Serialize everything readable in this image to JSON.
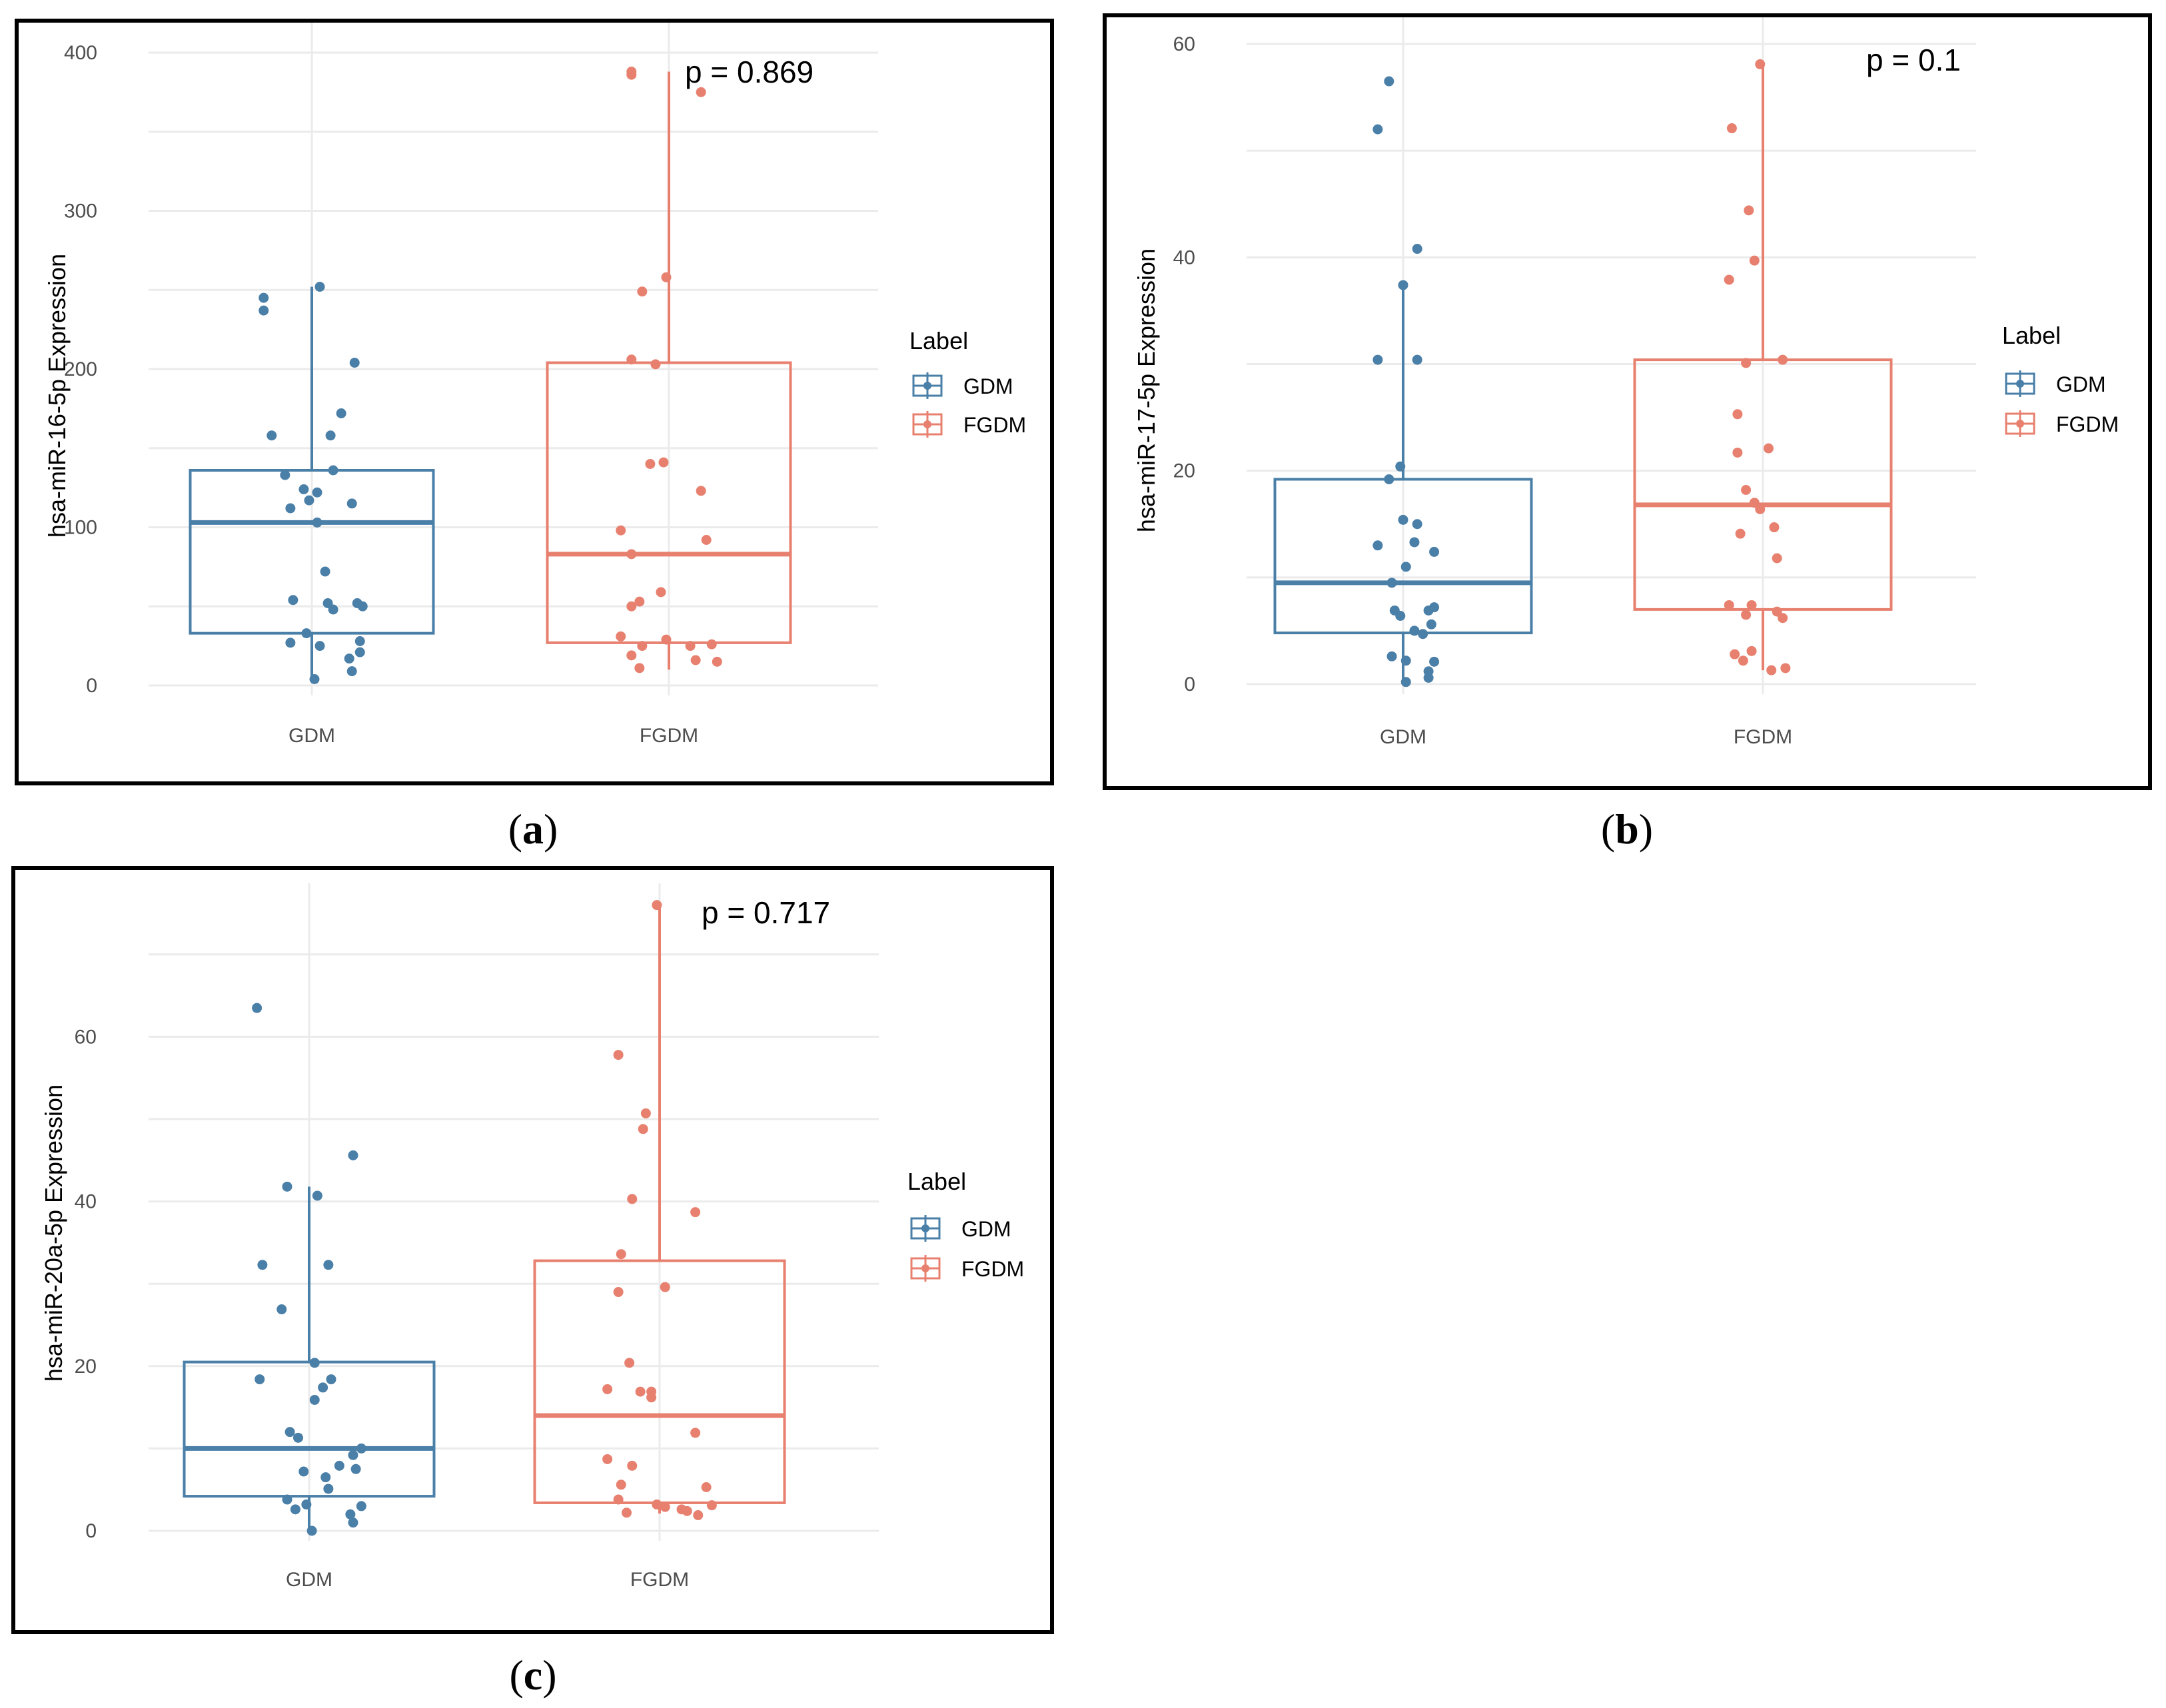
{
  "legend": {
    "title": "Label",
    "items": [
      {
        "name": "GDM",
        "color": "#4A7FA8"
      },
      {
        "name": "FGDM",
        "color": "#E8806F"
      }
    ]
  },
  "chart_data": [
    {
      "id": "a",
      "type": "box",
      "panel_label": "a",
      "ylabel": "hsa-miR-16-5p Expression",
      "xlabel": "",
      "categories": [
        "GDM",
        "FGDM"
      ],
      "ylim": [
        0,
        400
      ],
      "yticks": [
        0,
        100,
        200,
        300,
        400
      ],
      "pvalue_text": "p = 0.869",
      "boxes": [
        {
          "name": "GDM",
          "q1": 33,
          "median": 103,
          "q3": 136,
          "whisker_low": 3,
          "whisker_high": 252
        },
        {
          "name": "FGDM",
          "q1": 27,
          "median": 83,
          "q3": 204,
          "whisker_low": 10,
          "whisker_high": 388
        }
      ],
      "points": [
        [
          [
            -0.18,
            245
          ],
          [
            -0.18,
            237
          ],
          [
            0.03,
            252
          ],
          [
            0.16,
            204
          ],
          [
            -0.15,
            158
          ],
          [
            0.07,
            158
          ],
          [
            0.11,
            172
          ],
          [
            -0.1,
            133
          ],
          [
            0.08,
            136
          ],
          [
            -0.03,
            124
          ],
          [
            0.02,
            122
          ],
          [
            -0.01,
            117
          ],
          [
            -0.08,
            112
          ],
          [
            0.15,
            115
          ],
          [
            0.02,
            103
          ],
          [
            0.05,
            72
          ],
          [
            -0.07,
            54
          ],
          [
            0.06,
            52
          ],
          [
            0.08,
            48
          ],
          [
            0.17,
            52
          ],
          [
            0.19,
            50
          ],
          [
            -0.02,
            33
          ],
          [
            -0.08,
            27
          ],
          [
            0.03,
            25
          ],
          [
            0.18,
            28
          ],
          [
            0.18,
            21
          ],
          [
            0.14,
            17
          ],
          [
            0.15,
            9
          ],
          [
            0.01,
            4
          ]
        ],
        [
          [
            -0.14,
            388
          ],
          [
            -0.14,
            386
          ],
          [
            0.12,
            375
          ],
          [
            -0.1,
            249
          ],
          [
            -0.01,
            258
          ],
          [
            -0.14,
            206
          ],
          [
            -0.05,
            203
          ],
          [
            -0.07,
            140
          ],
          [
            -0.02,
            141
          ],
          [
            0.12,
            123
          ],
          [
            0.14,
            92
          ],
          [
            -0.18,
            98
          ],
          [
            -0.14,
            83
          ],
          [
            -0.03,
            59
          ],
          [
            -0.11,
            53
          ],
          [
            -0.14,
            50
          ],
          [
            -0.18,
            31
          ],
          [
            -0.1,
            25
          ],
          [
            -0.01,
            29
          ],
          [
            0.08,
            25
          ],
          [
            0.16,
            26
          ],
          [
            -0.14,
            19
          ],
          [
            0.1,
            16
          ],
          [
            0.18,
            15
          ],
          [
            -0.11,
            11
          ]
        ]
      ]
    },
    {
      "id": "b",
      "type": "box",
      "panel_label": "b",
      "ylabel": "hsa-miR-17-5p Expression",
      "xlabel": "",
      "categories": [
        "GDM",
        "FGDM"
      ],
      "ylim": [
        0,
        60
      ],
      "yticks": [
        0,
        20,
        40,
        60
      ],
      "pvalue_text": "p = 0.1",
      "boxes": [
        {
          "name": "GDM",
          "q1": 4.8,
          "median": 9.5,
          "q3": 19.2,
          "whisker_low": 0.2,
          "whisker_high": 37.4
        },
        {
          "name": "FGDM",
          "q1": 7.0,
          "median": 16.8,
          "q3": 30.4,
          "whisker_low": 1.3,
          "whisker_high": 58.1
        }
      ],
      "points": [
        [
          [
            -0.09,
            52.0
          ],
          [
            -0.05,
            56.5
          ],
          [
            0.05,
            40.8
          ],
          [
            0.0,
            37.4
          ],
          [
            -0.09,
            30.4
          ],
          [
            0.05,
            30.4
          ],
          [
            -0.01,
            20.4
          ],
          [
            -0.05,
            19.2
          ],
          [
            0.0,
            15.4
          ],
          [
            0.05,
            15.0
          ],
          [
            0.04,
            13.3
          ],
          [
            -0.09,
            13.0
          ],
          [
            0.11,
            12.4
          ],
          [
            0.01,
            11.0
          ],
          [
            -0.04,
            9.5
          ],
          [
            -0.03,
            6.9
          ],
          [
            -0.01,
            6.4
          ],
          [
            0.09,
            6.9
          ],
          [
            0.11,
            7.2
          ],
          [
            0.04,
            5.0
          ],
          [
            0.07,
            4.7
          ],
          [
            0.1,
            5.6
          ],
          [
            0.01,
            2.2
          ],
          [
            -0.04,
            2.6
          ],
          [
            0.11,
            2.1
          ],
          [
            0.09,
            1.2
          ],
          [
            0.09,
            0.6
          ],
          [
            0.01,
            0.2
          ]
        ],
        [
          [
            -0.01,
            58.1
          ],
          [
            -0.11,
            52.1
          ],
          [
            -0.05,
            44.4
          ],
          [
            -0.03,
            39.7
          ],
          [
            -0.12,
            37.9
          ],
          [
            -0.06,
            30.1
          ],
          [
            0.07,
            30.4
          ],
          [
            -0.09,
            25.3
          ],
          [
            0.02,
            22.1
          ],
          [
            -0.09,
            21.7
          ],
          [
            -0.06,
            18.2
          ],
          [
            -0.03,
            17.0
          ],
          [
            -0.01,
            16.4
          ],
          [
            0.04,
            14.7
          ],
          [
            -0.08,
            14.1
          ],
          [
            0.05,
            11.8
          ],
          [
            -0.12,
            7.4
          ],
          [
            -0.04,
            7.4
          ],
          [
            -0.06,
            6.5
          ],
          [
            0.05,
            6.8
          ],
          [
            0.07,
            6.2
          ],
          [
            -0.1,
            2.8
          ],
          [
            -0.07,
            2.2
          ],
          [
            -0.04,
            3.1
          ],
          [
            0.03,
            1.3
          ],
          [
            0.08,
            1.5
          ]
        ]
      ]
    },
    {
      "id": "c",
      "type": "box",
      "panel_label": "c",
      "ylabel": "hsa-miR-20a-5p Expression",
      "xlabel": "",
      "categories": [
        "GDM",
        "FGDM"
      ],
      "ylim": [
        0,
        75
      ],
      "yticks": [
        0,
        20,
        40,
        60
      ],
      "pvalue_text": "p = 0.717",
      "boxes": [
        {
          "name": "GDM",
          "q1": 4.2,
          "median": 10.0,
          "q3": 20.5,
          "whisker_low": 0.0,
          "whisker_high": 41.8
        },
        {
          "name": "FGDM",
          "q1": 3.4,
          "median": 14.0,
          "q3": 32.8,
          "whisker_low": 2.1,
          "whisker_high": 76.0
        }
      ],
      "points": [
        [
          [
            -0.19,
            63.5
          ],
          [
            -0.08,
            41.8
          ],
          [
            0.03,
            40.7
          ],
          [
            0.16,
            45.6
          ],
          [
            -0.17,
            32.3
          ],
          [
            0.07,
            32.3
          ],
          [
            -0.1,
            26.9
          ],
          [
            0.02,
            20.4
          ],
          [
            -0.18,
            18.4
          ],
          [
            0.08,
            18.4
          ],
          [
            0.05,
            17.4
          ],
          [
            0.02,
            15.9
          ],
          [
            -0.07,
            12.0
          ],
          [
            -0.04,
            11.3
          ],
          [
            0.19,
            10.0
          ],
          [
            0.16,
            9.2
          ],
          [
            -0.02,
            7.2
          ],
          [
            0.06,
            6.5
          ],
          [
            0.11,
            7.9
          ],
          [
            0.17,
            7.5
          ],
          [
            0.07,
            5.1
          ],
          [
            -0.08,
            3.8
          ],
          [
            -0.01,
            3.2
          ],
          [
            0.19,
            3.0
          ],
          [
            -0.05,
            2.6
          ],
          [
            0.15,
            2.0
          ],
          [
            0.16,
            1.0
          ],
          [
            0.01,
            0.0
          ]
        ],
        [
          [
            -0.01,
            76.0
          ],
          [
            -0.15,
            57.8
          ],
          [
            -0.06,
            48.8
          ],
          [
            -0.05,
            50.7
          ],
          [
            -0.1,
            40.3
          ],
          [
            0.13,
            38.7
          ],
          [
            -0.14,
            33.6
          ],
          [
            -0.15,
            29.0
          ],
          [
            0.02,
            29.6
          ],
          [
            -0.11,
            20.4
          ],
          [
            -0.07,
            16.9
          ],
          [
            -0.03,
            16.2
          ],
          [
            -0.03,
            16.9
          ],
          [
            -0.19,
            17.2
          ],
          [
            0.13,
            11.9
          ],
          [
            -0.19,
            8.7
          ],
          [
            -0.1,
            7.9
          ],
          [
            -0.14,
            5.6
          ],
          [
            0.17,
            5.3
          ],
          [
            -0.15,
            3.8
          ],
          [
            -0.01,
            3.2
          ],
          [
            0.02,
            2.9
          ],
          [
            0.08,
            2.6
          ],
          [
            0.1,
            2.4
          ],
          [
            0.19,
            3.1
          ],
          [
            -0.12,
            2.2
          ],
          [
            0.14,
            1.9
          ]
        ]
      ]
    }
  ]
}
